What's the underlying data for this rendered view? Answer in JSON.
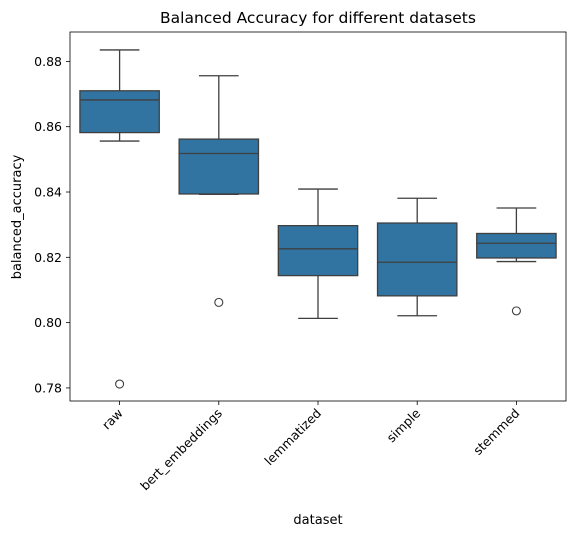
{
  "chart_data": {
    "type": "box",
    "title": "Balanced Accuracy for different datasets",
    "xlabel": "dataset",
    "ylabel": "balanced_accuracy",
    "ylim": [
      0.776,
      0.889
    ],
    "yticks": [
      0.78,
      0.8,
      0.82,
      0.84,
      0.86,
      0.88
    ],
    "ytick_labels": [
      "0.78",
      "0.80",
      "0.82",
      "0.84",
      "0.86",
      "0.88"
    ],
    "categories": [
      "raw",
      "bert_embeddings",
      "lemmatized",
      "simple",
      "stemmed"
    ],
    "boxes": [
      {
        "category": "raw",
        "whisker_low": 0.8556,
        "q1": 0.8582,
        "median": 0.8682,
        "q3": 0.871,
        "whisker_high": 0.8835,
        "outliers": [
          0.7812
        ]
      },
      {
        "category": "bert_embeddings",
        "whisker_low": 0.8393,
        "q1": 0.8394,
        "median": 0.8518,
        "q3": 0.8562,
        "whisker_high": 0.8756,
        "outliers": [
          0.8062
        ]
      },
      {
        "category": "lemmatized",
        "whisker_low": 0.8013,
        "q1": 0.8144,
        "median": 0.8226,
        "q3": 0.8297,
        "whisker_high": 0.8409,
        "outliers": []
      },
      {
        "category": "simple",
        "whisker_low": 0.8021,
        "q1": 0.8082,
        "median": 0.8185,
        "q3": 0.8305,
        "whisker_high": 0.8381,
        "outliers": []
      },
      {
        "category": "stemmed",
        "whisker_low": 0.8187,
        "q1": 0.8198,
        "median": 0.8243,
        "q3": 0.8273,
        "whisker_high": 0.8351,
        "outliers": [
          0.8036
        ]
      }
    ],
    "box_color": "#3274a1",
    "line_color": "#3f3f3f",
    "grid": false,
    "legend": "none"
  }
}
